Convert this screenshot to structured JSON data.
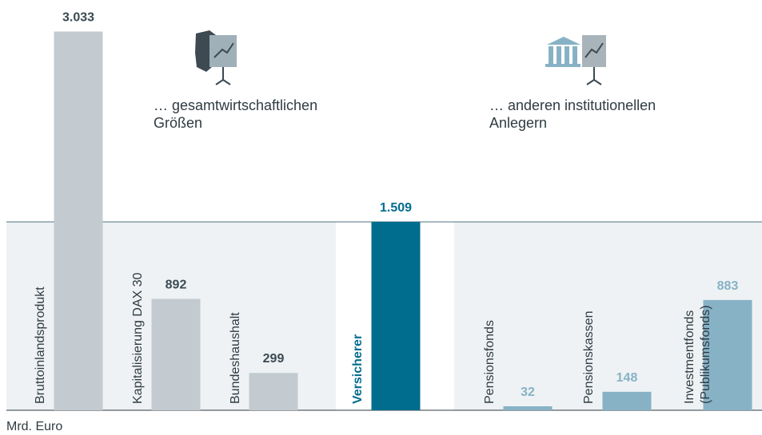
{
  "chart_data": {
    "type": "bar",
    "categories": [
      [
        "Bruttoinlandsprodukt"
      ],
      [
        "Kapitalisierung DAX 30"
      ],
      [
        "Bundeshaushalt"
      ],
      [
        "Versicherer"
      ],
      [
        "Pensionsfonds"
      ],
      [
        "Pensionskassen"
      ],
      [
        "Investmentfonds",
        "(Publikumsfonds)"
      ]
    ],
    "values": [
      3033,
      892,
      299,
      1509,
      32,
      148,
      883
    ],
    "value_labels": [
      "3.033",
      "892",
      "299",
      "1.509",
      "32",
      "148",
      "883"
    ],
    "colors": [
      "#c3cbd1",
      "#c3cbd1",
      "#c3cbd1",
      "#006c8e",
      "#87b2c6",
      "#87b2c6",
      "#87b2c6"
    ],
    "label_colors": [
      "#3b4a53",
      "#3b4a53",
      "#3b4a53",
      "#006c8e",
      "#87b2c6",
      "#87b2c6",
      "#87b2c6"
    ],
    "annotations": [
      [
        "… gesamtwirtschaftlichen",
        "Größen"
      ],
      [
        "… anderen institutionellen",
        "Anlegern"
      ]
    ],
    "unit_label": "Mrd. Euro",
    "ylim": [
      0,
      3100
    ]
  }
}
